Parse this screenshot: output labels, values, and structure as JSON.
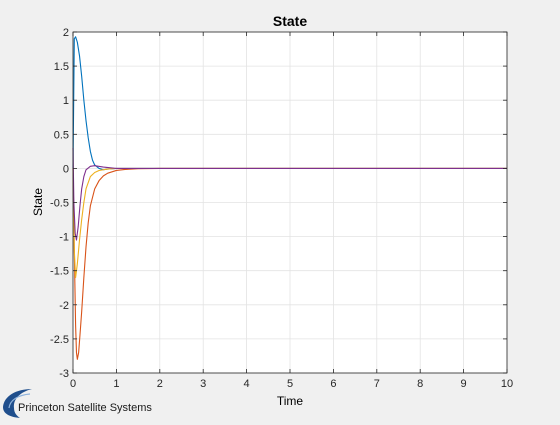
{
  "chart_data": {
    "type": "line",
    "title": "State",
    "xlabel": "Time",
    "ylabel": "State",
    "xlim": [
      0,
      10
    ],
    "ylim": [
      -3,
      2
    ],
    "xticks": [
      0,
      1,
      2,
      3,
      4,
      5,
      6,
      7,
      8,
      9,
      10
    ],
    "yticks": [
      -3,
      -2.5,
      -2,
      -1.5,
      -1,
      -0.5,
      0,
      0.5,
      1,
      1.5,
      2
    ],
    "grid": true,
    "legend": "none",
    "series": [
      {
        "color": "#0072BD",
        "x": [
          0,
          0.03,
          0.06,
          0.1,
          0.15,
          0.2,
          0.25,
          0.3,
          0.35,
          0.4,
          0.45,
          0.5,
          0.6,
          0.7,
          0.8,
          1.0,
          1.5,
          2.0,
          10
        ],
        "y": [
          0,
          1.9,
          1.93,
          1.85,
          1.65,
          1.35,
          1.0,
          0.7,
          0.45,
          0.25,
          0.12,
          0.05,
          0.0,
          -0.02,
          -0.01,
          0.0,
          0.0,
          0.0,
          0.0
        ]
      },
      {
        "color": "#D95319",
        "x": [
          0,
          0.03,
          0.06,
          0.08,
          0.1,
          0.13,
          0.16,
          0.2,
          0.25,
          0.3,
          0.35,
          0.4,
          0.5,
          0.6,
          0.7,
          0.8,
          1.0,
          1.2,
          1.5,
          2.0,
          2.5,
          10
        ],
        "y": [
          0,
          -1.2,
          -2.3,
          -2.7,
          -2.8,
          -2.7,
          -2.45,
          -2.1,
          -1.6,
          -1.15,
          -0.8,
          -0.55,
          -0.3,
          -0.18,
          -0.11,
          -0.07,
          -0.03,
          -0.015,
          -0.005,
          0.0,
          0.0,
          0.0
        ]
      },
      {
        "color": "#EDB120",
        "x": [
          0,
          0.03,
          0.06,
          0.1,
          0.15,
          0.2,
          0.25,
          0.3,
          0.4,
          0.5,
          0.6,
          0.8,
          1.0,
          1.5,
          10
        ],
        "y": [
          0,
          -1.2,
          -1.6,
          -1.4,
          -1.05,
          -0.75,
          -0.5,
          -0.3,
          -0.12,
          -0.06,
          -0.03,
          -0.01,
          0.0,
          0.0,
          0.0
        ]
      },
      {
        "color": "#7E2F8E",
        "x": [
          0,
          0.02,
          0.05,
          0.08,
          0.12,
          0.16,
          0.2,
          0.25,
          0.3,
          0.4,
          0.5,
          0.7,
          1.0,
          1.5,
          10
        ],
        "y": [
          0.3,
          -0.5,
          -0.95,
          -1.05,
          -0.85,
          -0.55,
          -0.3,
          -0.12,
          -0.02,
          0.03,
          0.04,
          0.02,
          0.0,
          0.0,
          0.0
        ]
      }
    ]
  },
  "footer": {
    "logo_text": "Princeton Satellite Systems",
    "logo_color": "#1f4e8c"
  }
}
